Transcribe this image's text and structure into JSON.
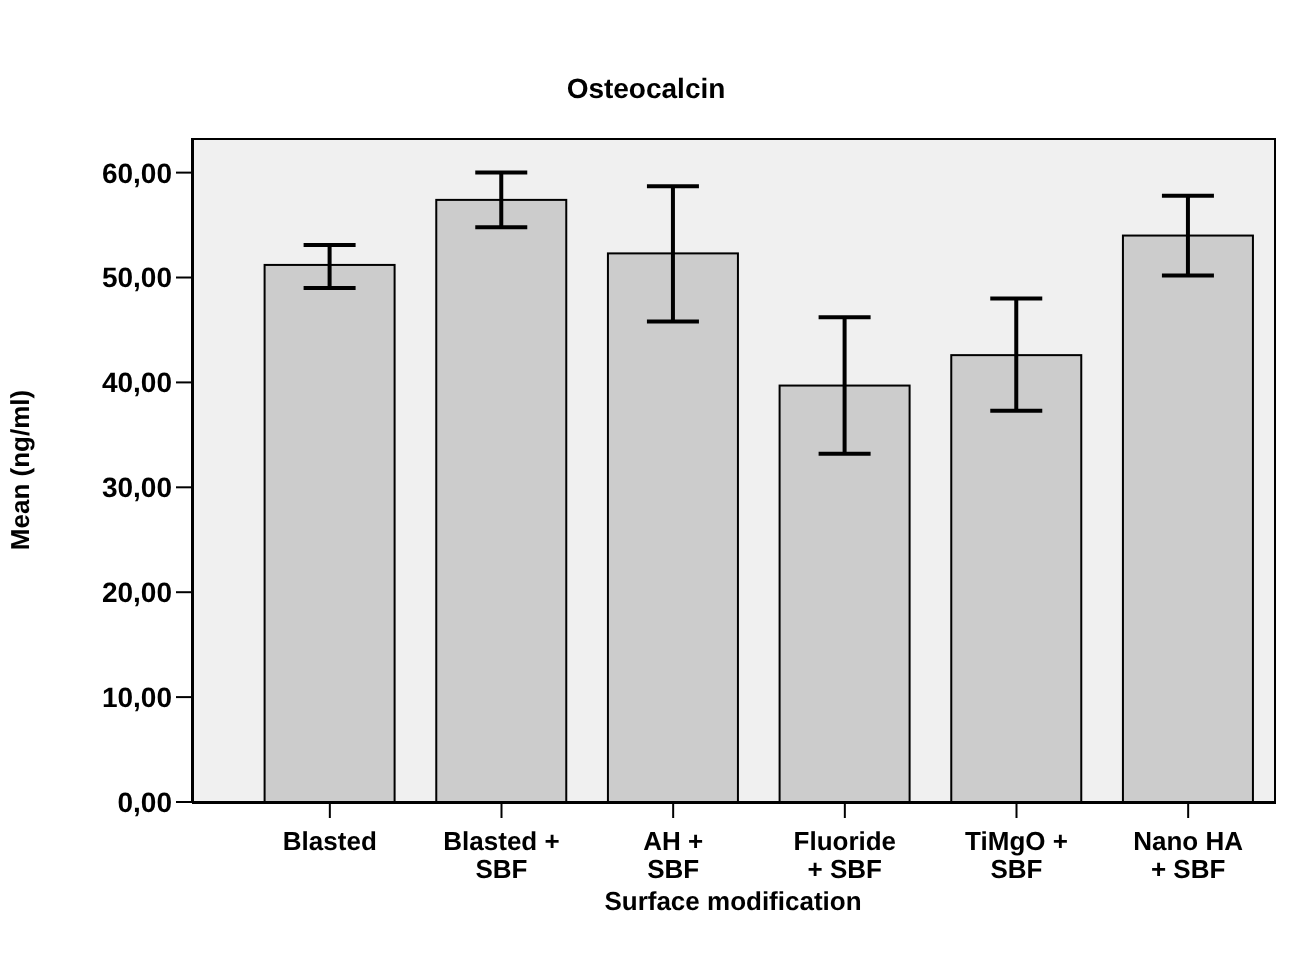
{
  "chart_data": {
    "type": "bar",
    "title": "Osteocalcin",
    "xlabel": "Surface modification",
    "ylabel": "Mean (ng/ml)",
    "categories": [
      "Blasted",
      "Blasted +\nSBF",
      "AH +\nSBF",
      "Fluoride\n+ SBF",
      "TiMgO +\nSBF",
      "Nano HA\n+ SBF"
    ],
    "values": [
      51.2,
      57.4,
      52.3,
      39.7,
      42.6,
      54.0
    ],
    "errors": [
      [
        49.0,
        53.1
      ],
      [
        54.8,
        60.0
      ],
      [
        45.8,
        58.7
      ],
      [
        33.2,
        46.2
      ],
      [
        37.3,
        48.0
      ],
      [
        50.2,
        57.8
      ]
    ],
    "color": "#cccccc",
    "ylim": [
      0,
      63.3
    ],
    "yticks": [
      {
        "value": 0,
        "label": "0,00"
      },
      {
        "value": 10,
        "label": "10,00"
      },
      {
        "value": 20,
        "label": "20,00"
      },
      {
        "value": 30,
        "label": "30,00"
      },
      {
        "value": 40,
        "label": "40,00"
      },
      {
        "value": 50,
        "label": "50,00"
      },
      {
        "value": 60,
        "label": "60,00"
      }
    ]
  }
}
